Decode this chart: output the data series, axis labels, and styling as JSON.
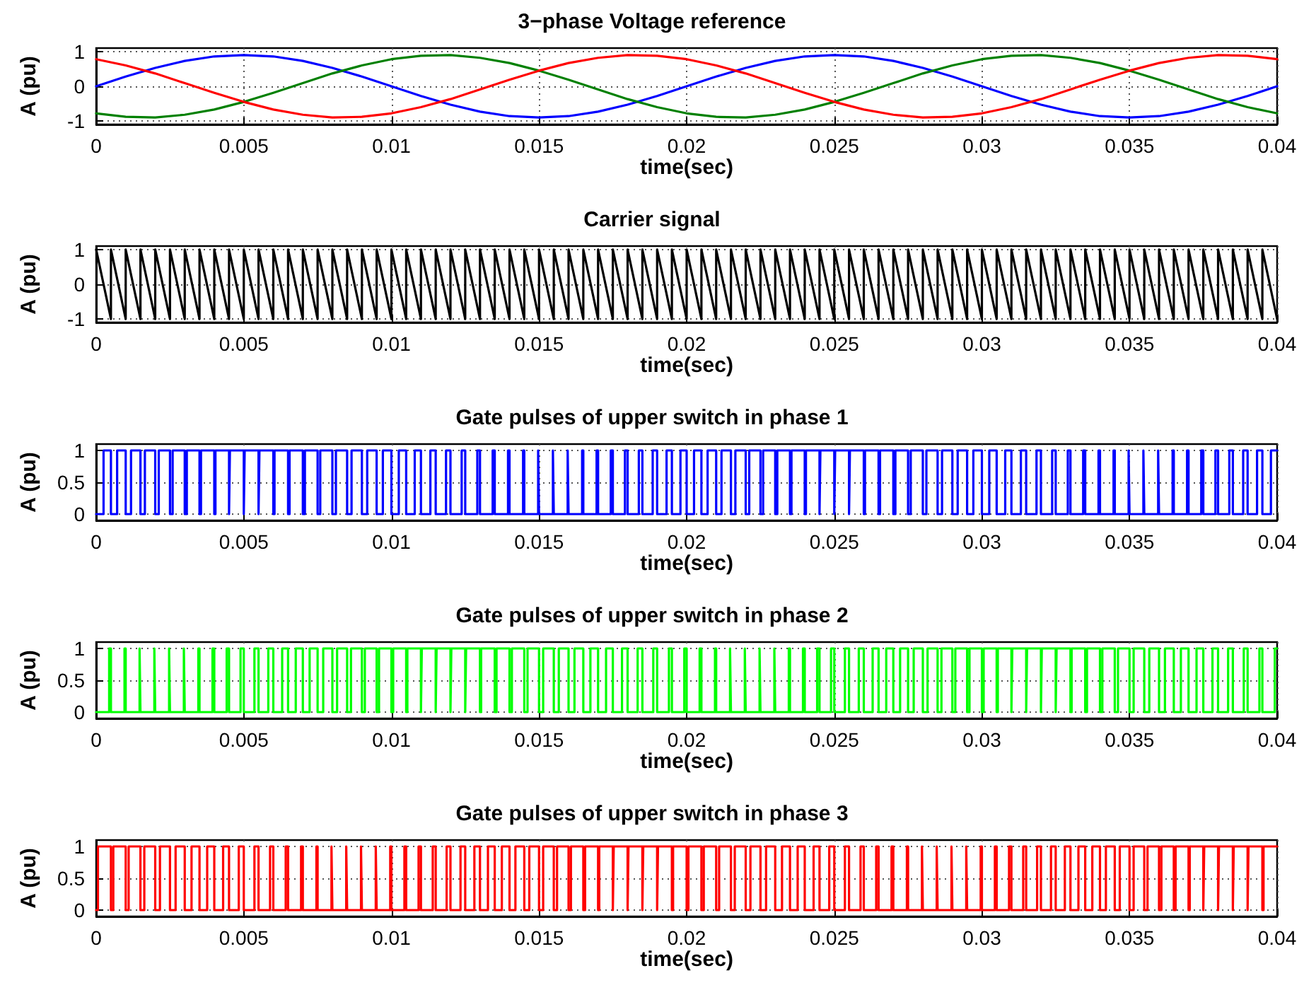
{
  "chart_data": [
    {
      "type": "line",
      "title": "3−phase Voltage reference",
      "xlabel": "time(sec)",
      "ylabel": "A (pu)",
      "xlim": [
        0,
        0.04
      ],
      "xticks": [
        0,
        0.005,
        0.01,
        0.015,
        0.02,
        0.025,
        0.03,
        0.035,
        0.04
      ],
      "ylim": [
        -1.1,
        1.1
      ],
      "yticks": [
        -1,
        0,
        1
      ],
      "grid": true,
      "x": [
        0,
        0.001,
        0.002,
        0.003,
        0.004,
        0.005,
        0.006,
        0.007,
        0.008,
        0.009,
        0.01,
        0.011,
        0.012,
        0.013,
        0.014,
        0.015,
        0.016,
        0.017,
        0.018,
        0.019,
        0.02,
        0.021,
        0.022,
        0.023,
        0.024,
        0.025,
        0.026,
        0.027,
        0.028,
        0.029,
        0.03,
        0.031,
        0.032,
        0.033,
        0.034,
        0.035,
        0.036,
        0.037,
        0.038,
        0.039,
        0.04
      ],
      "series": [
        {
          "color": "#0000ff",
          "values": [
            0,
            0.28,
            0.53,
            0.73,
            0.86,
            0.9,
            0.86,
            0.73,
            0.53,
            0.28,
            0,
            -0.28,
            -0.53,
            -0.73,
            -0.86,
            -0.9,
            -0.86,
            -0.73,
            -0.53,
            -0.28,
            0,
            0.28,
            0.53,
            0.73,
            0.86,
            0.9,
            0.86,
            0.73,
            0.53,
            0.28,
            0,
            -0.28,
            -0.53,
            -0.73,
            -0.86,
            -0.9,
            -0.86,
            -0.73,
            -0.53,
            -0.28,
            0
          ]
        },
        {
          "color": "#008000",
          "values": [
            -0.78,
            -0.88,
            -0.9,
            -0.82,
            -0.67,
            -0.45,
            -0.19,
            0.09,
            0.37,
            0.6,
            0.78,
            0.88,
            0.9,
            0.82,
            0.67,
            0.45,
            0.19,
            -0.09,
            -0.37,
            -0.6,
            -0.78,
            -0.88,
            -0.9,
            -0.82,
            -0.67,
            -0.45,
            -0.19,
            0.09,
            0.37,
            0.6,
            0.78,
            0.88,
            0.9,
            0.82,
            0.67,
            0.45,
            0.19,
            -0.09,
            -0.37,
            -0.6,
            -0.78
          ]
        },
        {
          "color": "#ff0000",
          "values": [
            0.78,
            0.6,
            0.37,
            0.09,
            -0.19,
            -0.45,
            -0.67,
            -0.82,
            -0.9,
            -0.88,
            -0.78,
            -0.6,
            -0.37,
            -0.09,
            0.19,
            0.45,
            0.67,
            0.82,
            0.9,
            0.88,
            0.78,
            0.6,
            0.37,
            0.09,
            -0.19,
            -0.45,
            -0.67,
            -0.82,
            -0.9,
            -0.88,
            -0.78,
            -0.6,
            -0.37,
            -0.09,
            0.19,
            0.45,
            0.67,
            0.82,
            0.9,
            0.88,
            0.78
          ]
        }
      ]
    },
    {
      "type": "line",
      "title": "Carrier signal",
      "xlabel": "time(sec)",
      "ylabel": "A (pu)",
      "xlim": [
        0,
        0.04
      ],
      "xticks": [
        0,
        0.005,
        0.01,
        0.015,
        0.02,
        0.025,
        0.03,
        0.035,
        0.04
      ],
      "ylim": [
        -1.1,
        1.1
      ],
      "yticks": [
        -1,
        0,
        1
      ],
      "grid": true,
      "series": [
        {
          "color": "#000000",
          "x": [
            0,
            0.0005,
            0.0005,
            0.001,
            0.001,
            0.0015,
            0.0015,
            0.002,
            0.002,
            0.0025,
            0.0025,
            0.003,
            0.003,
            0.0035,
            0.0035,
            0.004,
            0.004,
            0.0045,
            0.0045,
            0.005,
            0.005,
            0.0055,
            0.0055,
            0.006,
            0.006,
            0.0065,
            0.0065,
            0.007,
            0.007,
            0.0075,
            0.0075,
            0.008,
            0.008,
            0.0085,
            0.0085,
            0.009,
            0.009,
            0.0095,
            0.0095,
            0.01,
            0.01,
            0.0105,
            0.0105,
            0.011,
            0.011,
            0.0115,
            0.0115,
            0.012,
            0.012,
            0.0125,
            0.0125,
            0.013,
            0.013,
            0.0135,
            0.0135,
            0.014,
            0.014,
            0.0145,
            0.0145,
            0.015,
            0.015,
            0.0155,
            0.0155,
            0.016,
            0.016,
            0.0165,
            0.0165,
            0.017,
            0.017,
            0.0175,
            0.0175,
            0.018,
            0.018,
            0.0185,
            0.0185,
            0.019,
            0.019,
            0.0195,
            0.0195,
            0.02,
            0.02,
            0.0205,
            0.0205,
            0.021,
            0.021,
            0.0215,
            0.0215,
            0.022,
            0.022,
            0.0225,
            0.0225,
            0.023,
            0.023,
            0.0235,
            0.0235,
            0.024,
            0.024,
            0.0245,
            0.0245,
            0.025,
            0.025,
            0.0255,
            0.0255,
            0.026,
            0.026,
            0.0265,
            0.0265,
            0.027,
            0.027,
            0.0275,
            0.0275,
            0.028,
            0.028,
            0.0285,
            0.0285,
            0.029,
            0.029,
            0.0295,
            0.0295,
            0.03,
            0.03,
            0.0305,
            0.0305,
            0.031,
            0.031,
            0.0315,
            0.0315,
            0.032,
            0.032,
            0.0325,
            0.0325,
            0.033,
            0.033,
            0.0335,
            0.0335,
            0.034,
            0.034,
            0.0345,
            0.0345,
            0.035,
            0.035,
            0.0355,
            0.0355,
            0.036,
            0.036,
            0.0365,
            0.0365,
            0.037,
            0.037,
            0.0375,
            0.0375,
            0.038,
            0.038,
            0.0385,
            0.0385,
            0.039,
            0.039,
            0.0395,
            0.0395,
            0.04
          ],
          "values": [
            1,
            -1,
            1,
            -1,
            1,
            -1,
            1,
            -1,
            1,
            -1,
            1,
            -1,
            1,
            -1,
            1,
            -1,
            1,
            -1,
            1,
            -1,
            1,
            -1,
            1,
            -1,
            1,
            -1,
            1,
            -1,
            1,
            -1,
            1,
            -1,
            1,
            -1,
            1,
            -1,
            1,
            -1,
            1,
            -1,
            1,
            -1,
            1,
            -1,
            1,
            -1,
            1,
            -1,
            1,
            -1,
            1,
            -1,
            1,
            -1,
            1,
            -1,
            1,
            -1,
            1,
            -1,
            1,
            -1,
            1,
            -1,
            1,
            -1,
            1,
            -1,
            1,
            -1,
            1,
            -1,
            1,
            -1,
            1,
            -1,
            1,
            -1,
            1,
            -1,
            1,
            -1,
            1,
            -1,
            1,
            -1,
            1,
            -1,
            1,
            -1,
            1,
            -1,
            1,
            -1,
            1,
            -1,
            1,
            -1,
            1,
            -1,
            1,
            -1,
            1,
            -1,
            1,
            -1,
            1,
            -1,
            1,
            -1,
            1,
            -1,
            1,
            -1,
            1,
            -1,
            1,
            -1,
            1,
            -1,
            1,
            -1,
            1,
            -1,
            1,
            -1,
            1,
            -1,
            1,
            -1,
            1,
            -1,
            1,
            -1,
            1,
            -1,
            1,
            -1,
            1,
            -1,
            1,
            -1,
            1,
            -1,
            1,
            -1,
            1,
            -1,
            1,
            -1,
            1,
            -1,
            1,
            -1,
            1,
            -1,
            1,
            -1,
            1,
            -1
          ]
        }
      ]
    },
    {
      "type": "step",
      "title": "Gate pulses of upper switch in phase 1",
      "xlabel": "time(sec)",
      "ylabel": "A (pu)",
      "xlim": [
        0,
        0.04
      ],
      "xticks": [
        0,
        0.005,
        0.01,
        0.015,
        0.02,
        0.025,
        0.03,
        0.035,
        0.04
      ],
      "ylim": [
        -0.1,
        1.1
      ],
      "yticks": [
        0,
        0.5,
        1
      ],
      "grid": true,
      "series": [
        {
          "color": "#0000ff",
          "x": [
            0,
            0.00025,
            0.0005,
            0.00071,
            0.001,
            0.00118,
            0.0015,
            0.00165,
            0.002,
            0.00212,
            0.0025,
            0.00259,
            0.003,
            0.00307,
            0.0035,
            0.00355,
            0.004,
            0.00404,
            0.0045,
            0.00453,
            0.005,
            0.00503,
            0.0055,
            0.00553,
            0.006,
            0.00604,
            0.0065,
            0.00655,
            0.007,
            0.00707,
            0.0075,
            0.00759,
            0.008,
            0.00812,
            0.0085,
            0.00865,
            0.009,
            0.00918,
            0.0095,
            0.00971,
            0.01,
            0.01025,
            0.0105,
            0.01079,
            0.011,
            0.01132,
            0.0115,
            0.01185,
            0.012,
            0.01238,
            0.0125,
            0.01291,
            0.013,
            0.01343,
            0.0135,
            0.01395,
            0.014,
            0.01446,
            0.0145,
            0.01497,
            0.015,
            0.01547,
            0.0155,
            0.01597,
            0.016,
            0.01646,
            0.0165,
            0.01695,
            0.017,
            0.01743,
            0.0175,
            0.01791,
            0.018,
            0.01838,
            0.0185,
            0.01885,
            0.019,
            0.01932,
            0.0195,
            0.01979,
            0.02,
            0.02025,
            0.0205,
            0.02071,
            0.021,
            0.02118,
            0.0215,
            0.02165,
            0.022,
            0.02212,
            0.0225,
            0.02259,
            0.023,
            0.02307,
            0.0235,
            0.02355,
            0.024,
            0.02404,
            0.0245,
            0.02453,
            0.025,
            0.02503,
            0.0255,
            0.02553,
            0.026,
            0.02604,
            0.0265,
            0.02655,
            0.027,
            0.02707,
            0.0275,
            0.02759,
            0.028,
            0.02812,
            0.0285,
            0.02865,
            0.029,
            0.02918,
            0.0295,
            0.02971,
            0.03,
            0.03025,
            0.0305,
            0.03079,
            0.031,
            0.03132,
            0.0315,
            0.03185,
            0.032,
            0.03238,
            0.0325,
            0.03291,
            0.033,
            0.03343,
            0.0335,
            0.03395,
            0.034,
            0.03446,
            0.0345,
            0.03497,
            0.035,
            0.03547,
            0.0355,
            0.03597,
            0.036,
            0.03646,
            0.0365,
            0.03695,
            0.037,
            0.03743,
            0.0375,
            0.03791,
            0.038,
            0.03838,
            0.0385,
            0.03885,
            0.039,
            0.03932,
            0.0395,
            0.03979,
            0.04
          ],
          "values": [
            0,
            1,
            0,
            1,
            0,
            1,
            0,
            1,
            0,
            1,
            0,
            1,
            0,
            1,
            0,
            1,
            0,
            1,
            0,
            1,
            0,
            1,
            0,
            1,
            0,
            1,
            0,
            1,
            0,
            1,
            0,
            1,
            0,
            1,
            0,
            1,
            0,
            1,
            0,
            1,
            0,
            1,
            0,
            1,
            0,
            1,
            0,
            1,
            0,
            1,
            0,
            1,
            0,
            1,
            0,
            1,
            0,
            1,
            0,
            1,
            0,
            1,
            0,
            1,
            0,
            1,
            0,
            1,
            0,
            1,
            0,
            1,
            0,
            1,
            0,
            1,
            0,
            1,
            0,
            1,
            0,
            1,
            0,
            1,
            0,
            1,
            0,
            1,
            0,
            1,
            0,
            1,
            0,
            1,
            0,
            1,
            0,
            1,
            0,
            1,
            0,
            1,
            0,
            1,
            0,
            1,
            0,
            1,
            0,
            1,
            0,
            1,
            0,
            1,
            0,
            1,
            0,
            1,
            0,
            1,
            0,
            1,
            0,
            1,
            0,
            1,
            0,
            1,
            0,
            1,
            0,
            1,
            0,
            1,
            0,
            1,
            0,
            1,
            0,
            1,
            0,
            1,
            0,
            1,
            0,
            1,
            0,
            1,
            0,
            1,
            0,
            1,
            0,
            1,
            0,
            1,
            0,
            1,
            0,
            1,
            1
          ]
        }
      ]
    },
    {
      "type": "step",
      "title": "Gate pulses of upper switch in phase 2",
      "xlabel": "time(sec)",
      "ylabel": "A (pu)",
      "xlim": [
        0,
        0.04
      ],
      "xticks": [
        0,
        0.005,
        0.01,
        0.015,
        0.02,
        0.025,
        0.03,
        0.035,
        0.04
      ],
      "ylim": [
        -0.1,
        1.1
      ],
      "yticks": [
        0,
        0.5,
        1
      ],
      "grid": true,
      "series": [
        {
          "color": "#00ff00",
          "x": [
            0,
            0.00044,
            0.0005,
            0.00096,
            0.001,
            0.00147,
            0.0015,
            0.00197,
            0.002,
            0.00247,
            0.0025,
            0.00297,
            0.003,
            0.00346,
            0.0035,
            0.00394,
            0.004,
            0.00442,
            0.0045,
            0.00489,
            0.005,
            0.00536,
            0.0055,
            0.00583,
            0.006,
            0.0063,
            0.0065,
            0.00676,
            0.007,
            0.00723,
            0.0075,
            0.00769,
            0.008,
            0.00816,
            0.0085,
            0.00863,
            0.009,
            0.0091,
            0.0095,
            0.00958,
            0.01,
            0.01006,
            0.0105,
            0.01054,
            0.011,
            0.01103,
            0.0115,
            0.01153,
            0.012,
            0.01203,
            0.0125,
            0.01253,
            0.013,
            0.01304,
            0.0135,
            0.01356,
            0.014,
            0.01408,
            0.0145,
            0.01461,
            0.015,
            0.01514,
            0.0155,
            0.01567,
            0.016,
            0.0162,
            0.0165,
            0.01674,
            0.017,
            0.01727,
            0.0175,
            0.01781,
            0.018,
            0.01834,
            0.0185,
            0.01887,
            0.019,
            0.0194,
            0.0195,
            0.01992,
            0.02,
            0.02044,
            0.0205,
            0.02096,
            0.021,
            0.02147,
            0.0215,
            0.02197,
            0.022,
            0.02247,
            0.0225,
            0.02297,
            0.023,
            0.02346,
            0.0235,
            0.02394,
            0.024,
            0.02442,
            0.0245,
            0.02489,
            0.025,
            0.02536,
            0.0255,
            0.02583,
            0.026,
            0.0263,
            0.0265,
            0.02676,
            0.027,
            0.02723,
            0.0275,
            0.02769,
            0.028,
            0.02816,
            0.0285,
            0.02863,
            0.029,
            0.0291,
            0.0295,
            0.02958,
            0.03,
            0.03006,
            0.0305,
            0.03054,
            0.031,
            0.03103,
            0.0315,
            0.03153,
            0.032,
            0.03203,
            0.0325,
            0.03253,
            0.033,
            0.03304,
            0.0335,
            0.03356,
            0.034,
            0.03408,
            0.0345,
            0.03461,
            0.035,
            0.03514,
            0.0355,
            0.03567,
            0.036,
            0.0362,
            0.0365,
            0.03674,
            0.037,
            0.03727,
            0.0375,
            0.03781,
            0.038,
            0.03834,
            0.0385,
            0.03887,
            0.039,
            0.0394,
            0.0395,
            0.03992,
            0.04
          ],
          "values": [
            0,
            1,
            0,
            1,
            0,
            1,
            0,
            1,
            0,
            1,
            0,
            1,
            0,
            1,
            0,
            1,
            0,
            1,
            0,
            1,
            0,
            1,
            0,
            1,
            0,
            1,
            0,
            1,
            0,
            1,
            0,
            1,
            0,
            1,
            0,
            1,
            0,
            1,
            0,
            1,
            0,
            1,
            0,
            1,
            0,
            1,
            0,
            1,
            0,
            1,
            0,
            1,
            0,
            1,
            0,
            1,
            0,
            1,
            0,
            1,
            0,
            1,
            0,
            1,
            0,
            1,
            0,
            1,
            0,
            1,
            0,
            1,
            0,
            1,
            0,
            1,
            0,
            1,
            0,
            1,
            0,
            1,
            0,
            1,
            0,
            1,
            0,
            1,
            0,
            1,
            0,
            1,
            0,
            1,
            0,
            1,
            0,
            1,
            0,
            1,
            0,
            1,
            0,
            1,
            0,
            1,
            0,
            1,
            0,
            1,
            0,
            1,
            0,
            1,
            0,
            1,
            0,
            1,
            0,
            1,
            0,
            1,
            0,
            1,
            0,
            1,
            0,
            1,
            0,
            1,
            0,
            1,
            0,
            1,
            0,
            1,
            0,
            1,
            0,
            1,
            0,
            1,
            0,
            1,
            0,
            1,
            0,
            1,
            0,
            1,
            0,
            1,
            0,
            1,
            0,
            1,
            0,
            1,
            0,
            1,
            1
          ]
        }
      ]
    },
    {
      "type": "step",
      "title": "Gate pulses of upper switch in phase 3",
      "xlabel": "time(sec)",
      "ylabel": "A (pu)",
      "xlim": [
        0,
        0.04
      ],
      "xticks": [
        0,
        0.005,
        0.01,
        0.015,
        0.02,
        0.025,
        0.03,
        0.035,
        0.04
      ],
      "ylim": [
        -0.1,
        1.1
      ],
      "yticks": [
        0,
        0.5,
        1
      ],
      "grid": true,
      "series": [
        {
          "color": "#ff0000",
          "x": [
            0,
            6e-05,
            0.0005,
            0.00058,
            0.001,
            0.0011,
            0.0015,
            0.00163,
            0.002,
            0.00216,
            0.0025,
            0.00269,
            0.003,
            0.00323,
            0.0035,
            0.00376,
            0.004,
            0.0043,
            0.0045,
            0.00483,
            0.005,
            0.00536,
            0.0055,
            0.00589,
            0.006,
            0.00642,
            0.0065,
            0.00694,
            0.007,
            0.00746,
            0.0075,
            0.00797,
            0.008,
            0.00847,
            0.0085,
            0.00897,
            0.009,
            0.00947,
            0.0095,
            0.00996,
            0.01,
            0.01044,
            0.0105,
            0.01092,
            0.011,
            0.0114,
            0.0115,
            0.01187,
            0.012,
            0.01234,
            0.0125,
            0.01281,
            0.013,
            0.01327,
            0.0135,
            0.01374,
            0.014,
            0.0142,
            0.0145,
            0.01467,
            0.015,
            0.01514,
            0.0155,
            0.01561,
            0.016,
            0.01608,
            0.0165,
            0.01656,
            0.017,
            0.01704,
            0.0175,
            0.01753,
            0.018,
            0.01803,
            0.0185,
            0.01853,
            0.019,
            0.01903,
            0.0195,
            0.01954,
            0.02,
            0.02006,
            0.0205,
            0.02058,
            0.021,
            0.0211,
            0.0215,
            0.02163,
            0.022,
            0.02216,
            0.0225,
            0.02269,
            0.023,
            0.02323,
            0.0235,
            0.02376,
            0.024,
            0.0243,
            0.0245,
            0.02483,
            0.025,
            0.02536,
            0.0255,
            0.02589,
            0.026,
            0.02642,
            0.0265,
            0.02694,
            0.027,
            0.02746,
            0.0275,
            0.02797,
            0.028,
            0.02847,
            0.0285,
            0.02897,
            0.029,
            0.02947,
            0.0295,
            0.02996,
            0.03,
            0.03044,
            0.0305,
            0.03092,
            0.031,
            0.0314,
            0.0315,
            0.03187,
            0.032,
            0.03234,
            0.0325,
            0.03281,
            0.033,
            0.03327,
            0.0335,
            0.03374,
            0.034,
            0.0342,
            0.0345,
            0.03467,
            0.035,
            0.03514,
            0.0355,
            0.03561,
            0.036,
            0.03608,
            0.0365,
            0.03656,
            0.037,
            0.03704,
            0.0375,
            0.03753,
            0.038,
            0.03803,
            0.0385,
            0.03853,
            0.039,
            0.03903,
            0.0395,
            0.03954,
            0.04
          ],
          "values": [
            0,
            1,
            0,
            1,
            0,
            1,
            0,
            1,
            0,
            1,
            0,
            1,
            0,
            1,
            0,
            1,
            0,
            1,
            0,
            1,
            0,
            1,
            0,
            1,
            0,
            1,
            0,
            1,
            0,
            1,
            0,
            1,
            0,
            1,
            0,
            1,
            0,
            1,
            0,
            1,
            0,
            1,
            0,
            1,
            0,
            1,
            0,
            1,
            0,
            1,
            0,
            1,
            0,
            1,
            0,
            1,
            0,
            1,
            0,
            1,
            0,
            1,
            0,
            1,
            0,
            1,
            0,
            1,
            0,
            1,
            0,
            1,
            0,
            1,
            0,
            1,
            0,
            1,
            0,
            1,
            0,
            1,
            0,
            1,
            0,
            1,
            0,
            1,
            0,
            1,
            0,
            1,
            0,
            1,
            0,
            1,
            0,
            1,
            0,
            1,
            0,
            1,
            0,
            1,
            0,
            1,
            0,
            1,
            0,
            1,
            0,
            1,
            0,
            1,
            0,
            1,
            0,
            1,
            0,
            1,
            0,
            1,
            0,
            1,
            0,
            1,
            0,
            1,
            0,
            1,
            0,
            1,
            0,
            1,
            0,
            1,
            0,
            1,
            0,
            1,
            0,
            1,
            0,
            1,
            0,
            1,
            0,
            1,
            0,
            1,
            0,
            1,
            0,
            1,
            0,
            1,
            0,
            1,
            0,
            1,
            1
          ]
        }
      ]
    }
  ]
}
